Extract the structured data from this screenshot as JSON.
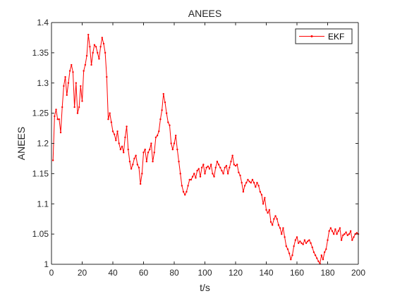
{
  "chart_data": {
    "type": "line",
    "title": "ANEES",
    "xlabel": "t/s",
    "ylabel": "ANEES",
    "xlim": [
      0,
      200
    ],
    "ylim": [
      1,
      1.4
    ],
    "xticks": [
      0,
      20,
      40,
      60,
      80,
      100,
      120,
      140,
      160,
      180,
      200
    ],
    "yticks": [
      1,
      1.05,
      1.1,
      1.15,
      1.2,
      1.25,
      1.3,
      1.35,
      1.4
    ],
    "xtick_labels": [
      "0",
      "20",
      "40",
      "60",
      "80",
      "100",
      "120",
      "140",
      "160",
      "180",
      "200"
    ],
    "ytick_labels": [
      "1",
      "1.05",
      "1.1",
      "1.15",
      "1.2",
      "1.25",
      "1.3",
      "1.35",
      "1.4"
    ],
    "grid": false,
    "legend_position": "top-right",
    "series": [
      {
        "name": "EKF",
        "color": "#ff0000",
        "marker": "dot",
        "x": [
          1,
          2,
          3,
          4,
          5,
          6,
          7,
          8,
          9,
          10,
          11,
          12,
          13,
          14,
          15,
          16,
          17,
          18,
          19,
          20,
          21,
          22,
          23,
          24,
          25,
          26,
          27,
          28,
          29,
          30,
          31,
          32,
          33,
          34,
          35,
          36,
          37,
          38,
          39,
          40,
          41,
          42,
          43,
          44,
          45,
          46,
          47,
          48,
          49,
          50,
          51,
          52,
          53,
          54,
          55,
          56,
          57,
          58,
          59,
          60,
          61,
          62,
          63,
          64,
          65,
          66,
          67,
          68,
          69,
          70,
          71,
          72,
          73,
          74,
          75,
          76,
          77,
          78,
          79,
          80,
          81,
          82,
          83,
          84,
          85,
          86,
          87,
          88,
          89,
          90,
          91,
          92,
          93,
          94,
          95,
          96,
          97,
          98,
          99,
          100,
          101,
          102,
          103,
          104,
          105,
          106,
          107,
          108,
          109,
          110,
          111,
          112,
          113,
          114,
          115,
          116,
          117,
          118,
          119,
          120,
          121,
          122,
          123,
          124,
          125,
          126,
          127,
          128,
          129,
          130,
          131,
          132,
          133,
          134,
          135,
          136,
          137,
          138,
          139,
          140,
          141,
          142,
          143,
          144,
          145,
          146,
          147,
          148,
          149,
          150,
          151,
          152,
          153,
          154,
          155,
          156,
          157,
          158,
          159,
          160,
          161,
          162,
          163,
          164,
          165,
          166,
          167,
          168,
          169,
          170,
          171,
          172,
          173,
          174,
          175,
          176,
          177,
          178,
          179,
          180,
          181,
          182,
          183,
          184,
          185,
          186,
          187,
          188,
          189,
          190,
          191,
          192,
          193,
          194,
          195,
          196,
          197,
          198,
          199,
          200
        ],
        "y": [
          1.172,
          1.245,
          1.256,
          1.24,
          1.24,
          1.218,
          1.26,
          1.295,
          1.31,
          1.28,
          1.3,
          1.32,
          1.33,
          1.318,
          1.26,
          1.3,
          1.25,
          1.26,
          1.295,
          1.27,
          1.32,
          1.33,
          1.345,
          1.38,
          1.36,
          1.33,
          1.35,
          1.363,
          1.36,
          1.35,
          1.34,
          1.36,
          1.375,
          1.365,
          1.35,
          1.31,
          1.24,
          1.25,
          1.235,
          1.22,
          1.215,
          1.205,
          1.22,
          1.2,
          1.19,
          1.195,
          1.185,
          1.21,
          1.228,
          1.19,
          1.17,
          1.158,
          1.165,
          1.175,
          1.18,
          1.165,
          1.16,
          1.133,
          1.15,
          1.185,
          1.19,
          1.17,
          1.185,
          1.19,
          1.2,
          1.17,
          1.185,
          1.21,
          1.213,
          1.22,
          1.24,
          1.255,
          1.282,
          1.268,
          1.25,
          1.235,
          1.23,
          1.2,
          1.19,
          1.2,
          1.213,
          1.19,
          1.17,
          1.15,
          1.13,
          1.12,
          1.115,
          1.12,
          1.13,
          1.14,
          1.14,
          1.145,
          1.15,
          1.143,
          1.155,
          1.158,
          1.145,
          1.16,
          1.165,
          1.15,
          1.16,
          1.162,
          1.158,
          1.165,
          1.15,
          1.145,
          1.16,
          1.17,
          1.165,
          1.16,
          1.155,
          1.15,
          1.16,
          1.163,
          1.15,
          1.16,
          1.17,
          1.18,
          1.165,
          1.163,
          1.165,
          1.152,
          1.147,
          1.135,
          1.12,
          1.13,
          1.135,
          1.14,
          1.137,
          1.135,
          1.14,
          1.135,
          1.128,
          1.135,
          1.13,
          1.12,
          1.115,
          1.1,
          1.11,
          1.09,
          1.085,
          1.09,
          1.07,
          1.065,
          1.075,
          1.08,
          1.075,
          1.065,
          1.06,
          1.05,
          1.06,
          1.045,
          1.03,
          1.025,
          1.018,
          1.008,
          1.015,
          1.03,
          1.04,
          1.045,
          1.035,
          1.038,
          1.035,
          1.033,
          1.04,
          1.035,
          1.038,
          1.04,
          1.035,
          1.028,
          1.02,
          1.015,
          1.01,
          1.005,
          1.001,
          1.015,
          1.008,
          1.02,
          1.025,
          1.04,
          1.055,
          1.06,
          1.055,
          1.05,
          1.058,
          1.05,
          1.055,
          1.06,
          1.04,
          1.048,
          1.05,
          1.053,
          1.048,
          1.05,
          1.055,
          1.04,
          1.045,
          1.05,
          1.052,
          1.05
        ]
      }
    ]
  }
}
